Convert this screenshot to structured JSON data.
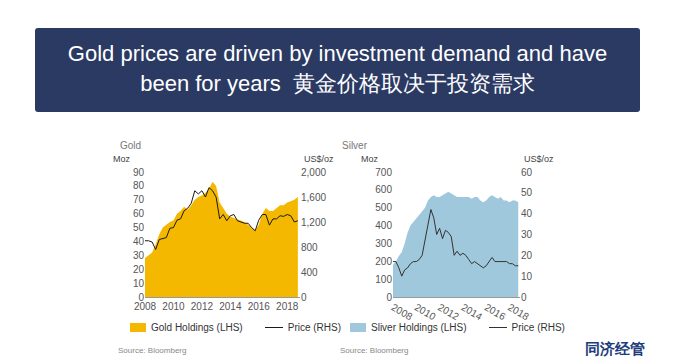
{
  "slide": {
    "title": "Gold prices are driven by investment demand and have been for years",
    "title_zh": "黄金价格取决于投资需求",
    "logo": "同济经管"
  },
  "chart_data": [
    {
      "type": "line",
      "title": "Gold",
      "y_label": "Moz",
      "y2_label": "US$/oz",
      "source": "Source: Bloomberg",
      "grid": false,
      "x": [
        2008.0,
        2008.25,
        2008.5,
        2008.75,
        2009.0,
        2009.25,
        2009.5,
        2009.75,
        2010.0,
        2010.25,
        2010.5,
        2010.75,
        2011.0,
        2011.25,
        2011.5,
        2011.75,
        2012.0,
        2012.25,
        2012.5,
        2012.75,
        2013.0,
        2013.25,
        2013.5,
        2013.75,
        2014.0,
        2014.25,
        2014.5,
        2014.75,
        2015.0,
        2015.25,
        2015.5,
        2015.75,
        2016.0,
        2016.25,
        2016.5,
        2016.75,
        2017.0,
        2017.25,
        2017.5,
        2017.75,
        2018.0,
        2018.25,
        2018.5,
        2018.75
      ],
      "xlim": [
        2008,
        2018.9
      ],
      "xticks": [
        2008,
        2010,
        2012,
        2014,
        2016,
        2018
      ],
      "ylim": [
        0,
        90
      ],
      "yticks": [
        0,
        10,
        20,
        30,
        40,
        50,
        60,
        70,
        80,
        90
      ],
      "y2lim": [
        0,
        2000
      ],
      "y2ticks": [
        0,
        400,
        800,
        {
          "value": 1200,
          "label": "1,200"
        },
        {
          "value": 1600,
          "label": "1,600"
        },
        {
          "value": 2000,
          "label": "2,000"
        }
      ],
      "series": [
        {
          "name": "Gold Holdings (LHS)",
          "type": "area",
          "color": "#f5b800",
          "axis": "y",
          "values": [
            28,
            30,
            32,
            38,
            45,
            50,
            52,
            54,
            55,
            60,
            62,
            65,
            63,
            66,
            70,
            72,
            73,
            75,
            78,
            83,
            80,
            68,
            64,
            60,
            58,
            57,
            56,
            55,
            54,
            52,
            50,
            48,
            52,
            60,
            64,
            62,
            62,
            64,
            66,
            66,
            68,
            69,
            70,
            72
          ]
        },
        {
          "name": "Price (RHS)",
          "type": "line",
          "color": "#1a1a1a",
          "axis": "y2",
          "values": [
            900,
            900,
            880,
            760,
            920,
            930,
            950,
            1100,
            1110,
            1230,
            1250,
            1380,
            1420,
            1500,
            1700,
            1650,
            1700,
            1600,
            1750,
            1700,
            1600,
            1250,
            1320,
            1220,
            1300,
            1320,
            1220,
            1200,
            1180,
            1180,
            1110,
            1060,
            1230,
            1320,
            1320,
            1150,
            1250,
            1250,
            1300,
            1290,
            1320,
            1300,
            1200,
            1220
          ]
        }
      ]
    },
    {
      "type": "line",
      "title": "Silver",
      "y_label": "Moz",
      "y2_label": "US$/oz",
      "source": "Source: Bloomberg",
      "grid": false,
      "x": [
        2008.0,
        2008.25,
        2008.5,
        2008.75,
        2009.0,
        2009.25,
        2009.5,
        2009.75,
        2010.0,
        2010.25,
        2010.5,
        2010.75,
        2011.0,
        2011.25,
        2011.5,
        2011.75,
        2012.0,
        2012.25,
        2012.5,
        2012.75,
        2013.0,
        2013.25,
        2013.5,
        2013.75,
        2014.0,
        2014.25,
        2014.5,
        2014.75,
        2015.0,
        2015.25,
        2015.5,
        2015.75,
        2016.0,
        2016.25,
        2016.5,
        2016.75,
        2017.0,
        2017.25,
        2017.5,
        2017.75,
        2018.0,
        2018.25,
        2018.5,
        2018.75
      ],
      "xlim": [
        2008,
        2018.9
      ],
      "xticks": [
        2008,
        2010,
        2012,
        2014,
        2016,
        2018
      ],
      "ylim": [
        0,
        700
      ],
      "yticks": [
        0,
        100,
        200,
        300,
        400,
        500,
        600,
        700
      ],
      "y2lim": [
        0,
        60
      ],
      "y2ticks": [
        0,
        10,
        20,
        30,
        40,
        50,
        60
      ],
      "series": [
        {
          "name": "Sliver Holdings (LHS)",
          "type": "area",
          "color": "#9fc8dc",
          "axis": "y",
          "values": [
            180,
            200,
            230,
            250,
            300,
            360,
            400,
            420,
            440,
            460,
            480,
            500,
            540,
            560,
            570,
            560,
            560,
            570,
            580,
            590,
            580,
            570,
            560,
            560,
            560,
            560,
            560,
            550,
            560,
            560,
            540,
            530,
            540,
            560,
            570,
            560,
            550,
            560,
            540,
            540,
            530,
            540,
            540,
            530
          ]
        },
        {
          "name": "Price (RHS)",
          "type": "line",
          "color": "#333333",
          "axis": "y2",
          "values": [
            17,
            17,
            14,
            10,
            13,
            14,
            16,
            17,
            17,
            18,
            20,
            28,
            35,
            42,
            38,
            30,
            33,
            28,
            32,
            31,
            29,
            20,
            22,
            20,
            21,
            20,
            18,
            16,
            17,
            16,
            15,
            14,
            15,
            17,
            19,
            17,
            17,
            17,
            17,
            17,
            16,
            16,
            15,
            15
          ]
        }
      ]
    }
  ]
}
